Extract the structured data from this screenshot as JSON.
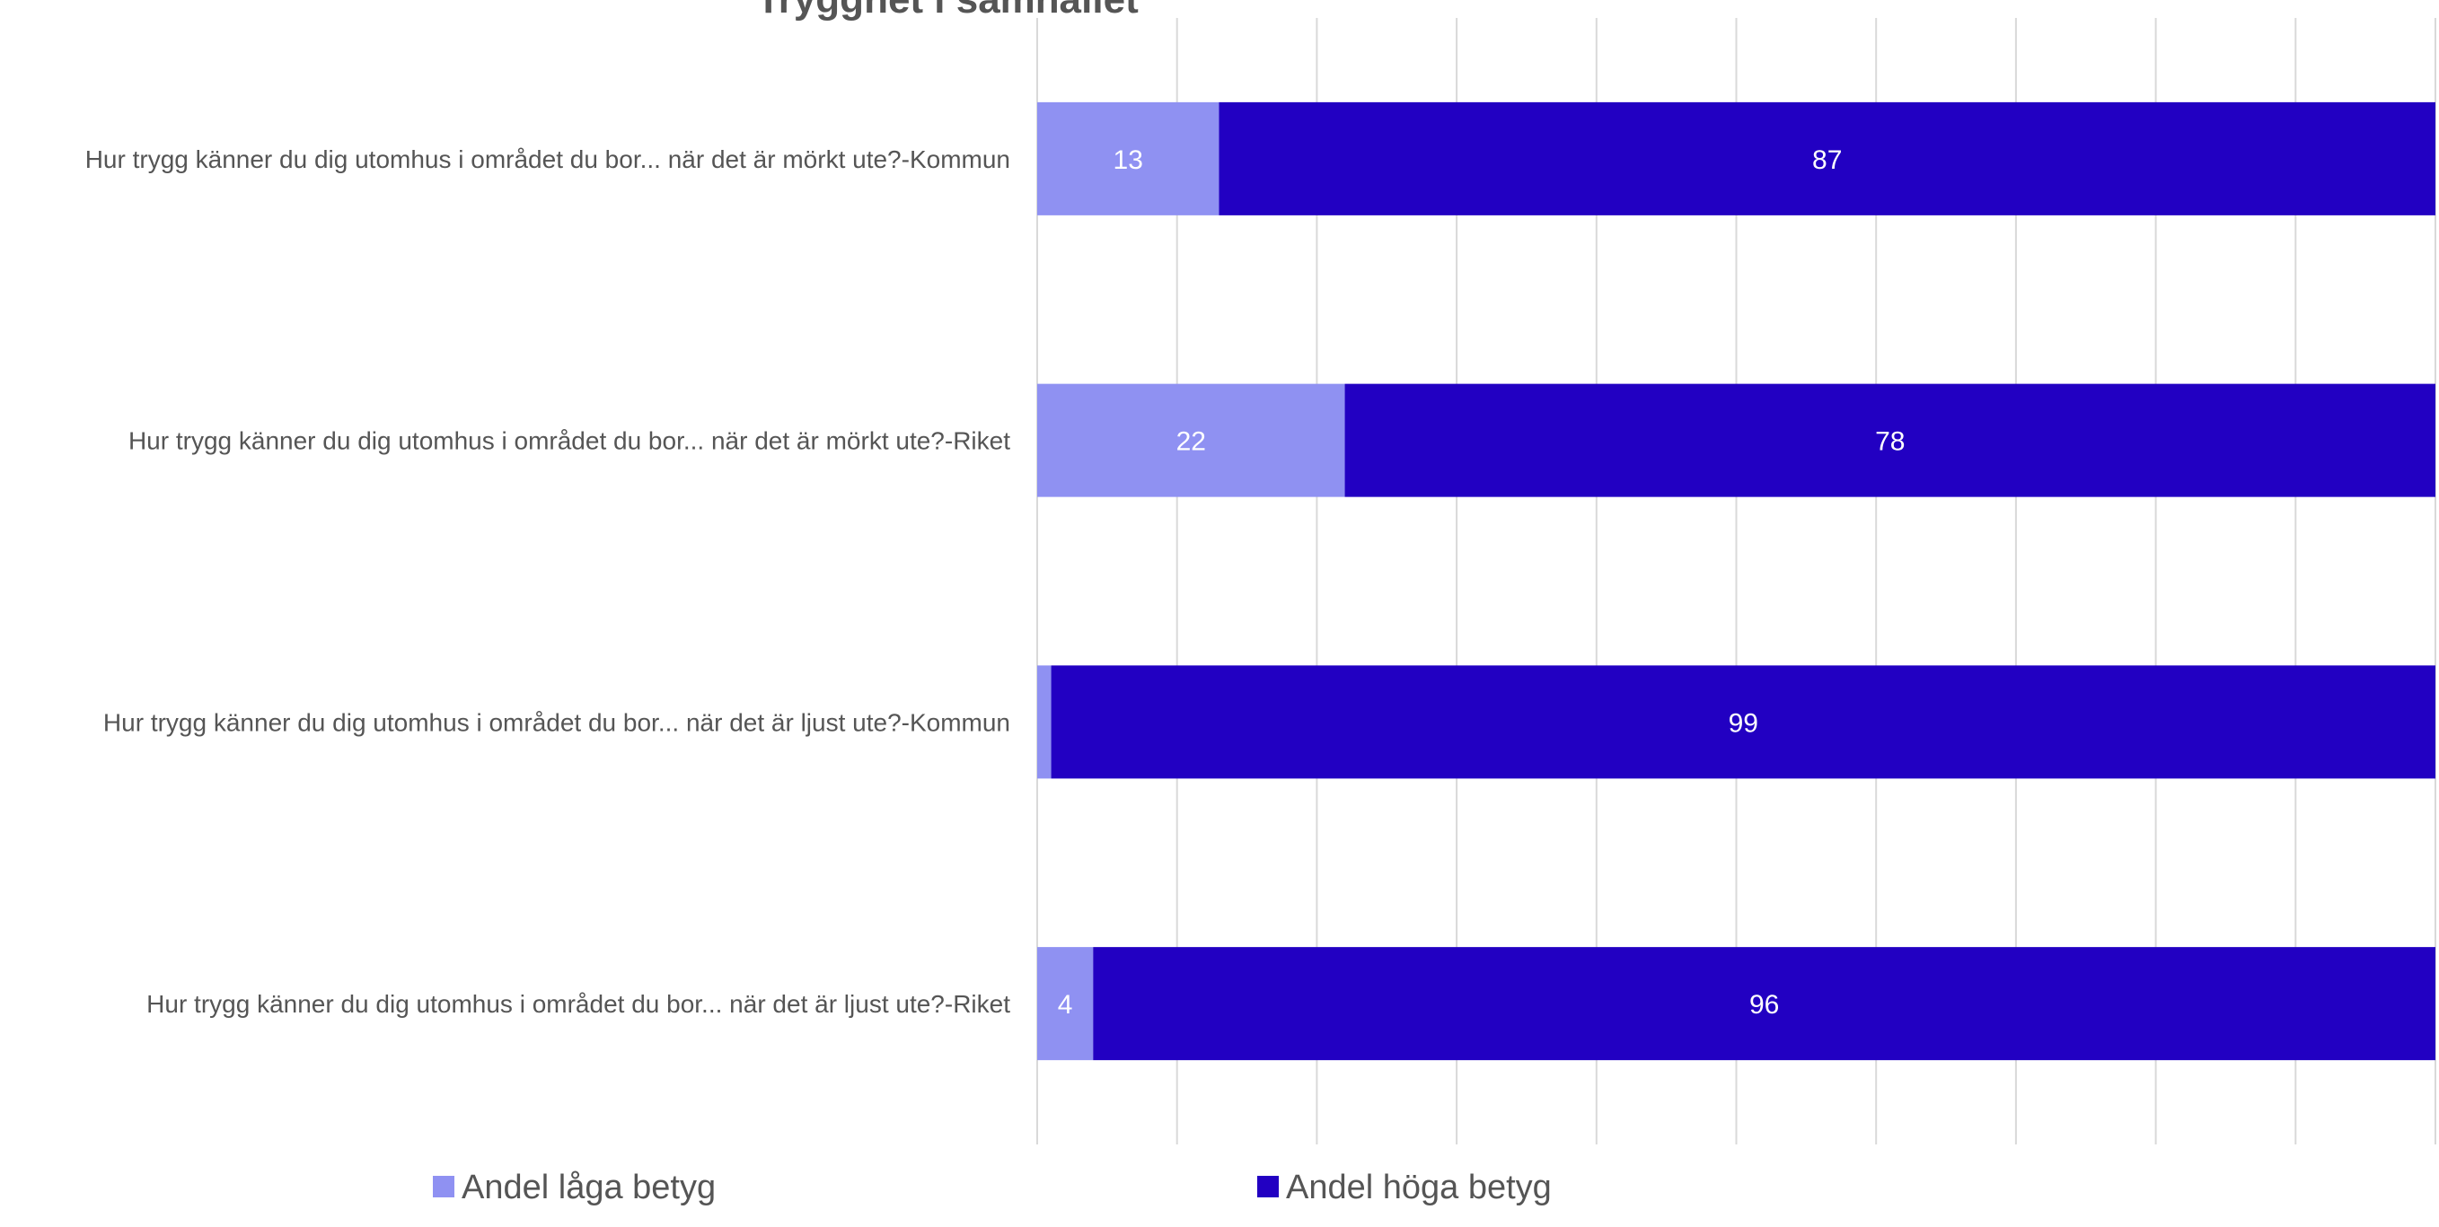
{
  "chart_data": {
    "type": "bar",
    "orientation": "horizontal",
    "stacked": true,
    "title": "Trygghet i samhället",
    "categories": [
      "Hur trygg känner du dig utomhus i området du bor... när det är mörkt ute?-Kommun",
      "Hur trygg känner du dig utomhus i området du bor... när det är mörkt ute?-Riket",
      "Hur trygg känner du dig utomhus i området du bor... när det är ljust ute?-Kommun",
      "Hur trygg känner du dig utomhus i området du bor... när det är ljust ute?-Riket"
    ],
    "series": [
      {
        "name": "Andel låga betyg",
        "color": "#8f91f2",
        "values": [
          13,
          22,
          1,
          4
        ],
        "labels": [
          "13",
          "22",
          "",
          "4"
        ]
      },
      {
        "name": "Andel höga betyg",
        "color": "#2200c2",
        "values": [
          87,
          78,
          99,
          96
        ],
        "labels": [
          "87",
          "78",
          "99",
          "96"
        ]
      }
    ],
    "xlim": [
      0,
      100
    ],
    "grid": true,
    "legend_position": "bottom"
  }
}
